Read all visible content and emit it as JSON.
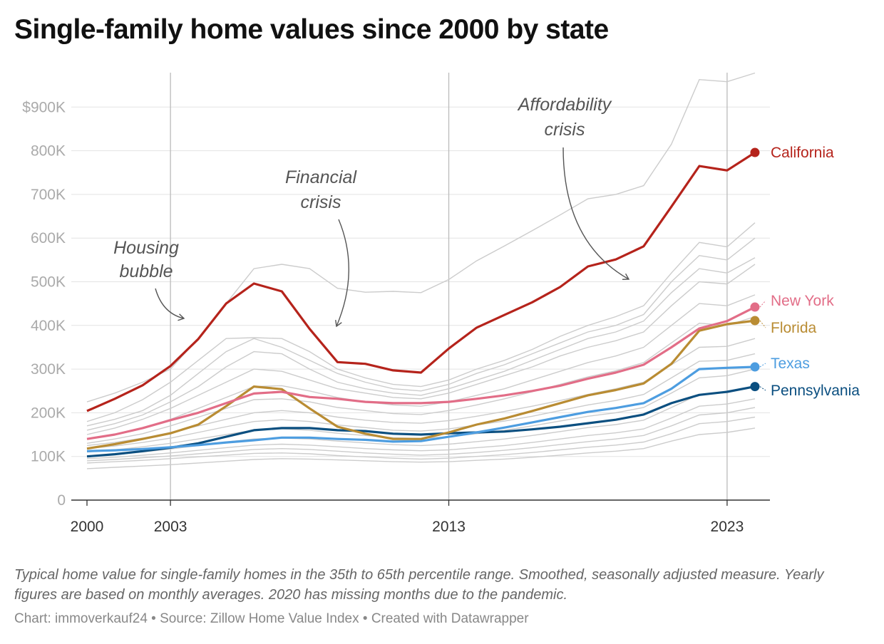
{
  "title": "Single-family home values since 2000 by state",
  "note": "Typical home value for single-family homes in the 35th to 65th percentile range. Smoothed, seasonally adjusted measure. Yearly figures are based on monthly averages. 2020 has missing months due to the pandemic.",
  "credit": "Chart: immoverkauf24 • Source: Zillow Home Value Index • Created with Datawrapper",
  "chart_data": {
    "type": "line",
    "title": "Single-family home values since 2000 by state",
    "x": [
      2000,
      2001,
      2002,
      2003,
      2004,
      2005,
      2006,
      2007,
      2008,
      2009,
      2010,
      2011,
      2012,
      2013,
      2014,
      2015,
      2016,
      2017,
      2018,
      2019,
      2020,
      2021,
      2022,
      2023,
      2024
    ],
    "xticks": [
      {
        "value": 2000,
        "label": "2000"
      },
      {
        "value": 2003,
        "label": "2003"
      },
      {
        "value": 2013,
        "label": "2013"
      },
      {
        "value": 2023,
        "label": "2023"
      }
    ],
    "ylim": [
      0,
      1000000
    ],
    "yticks": [
      {
        "value": 0,
        "label": "0"
      },
      {
        "value": 100000,
        "label": "100K"
      },
      {
        "value": 200000,
        "label": "200K"
      },
      {
        "value": 300000,
        "label": "300K"
      },
      {
        "value": 400000,
        "label": "400K"
      },
      {
        "value": 500000,
        "label": "500K"
      },
      {
        "value": 600000,
        "label": "600K"
      },
      {
        "value": 700000,
        "label": "700K"
      },
      {
        "value": 800000,
        "label": "800K"
      },
      {
        "value": 900000,
        "label": "$900K"
      }
    ],
    "grid": true,
    "highlighted_series": [
      {
        "name": "California",
        "color": "#b5231b",
        "values": [
          204,
          232,
          263,
          307,
          369,
          450,
          496,
          478,
          392,
          316,
          312,
          297,
          292,
          347,
          395,
          424,
          453,
          488,
          535,
          551,
          581,
          672,
          765,
          755,
          796
        ]
      },
      {
        "name": "New York",
        "color": "#e26d87",
        "values": [
          140,
          150,
          165,
          183,
          200,
          222,
          244,
          248,
          236,
          232,
          225,
          222,
          222,
          225,
          232,
          240,
          250,
          262,
          278,
          292,
          310,
          350,
          393,
          410,
          442
        ]
      },
      {
        "name": "Florida",
        "color": "#b98c33",
        "values": [
          118,
          128,
          140,
          153,
          173,
          215,
          260,
          254,
          210,
          168,
          152,
          140,
          140,
          155,
          173,
          187,
          204,
          222,
          240,
          252,
          267,
          312,
          388,
          403,
          411
        ]
      },
      {
        "name": "Texas",
        "color": "#4d9de0",
        "values": [
          112,
          114,
          117,
          121,
          126,
          132,
          137,
          143,
          143,
          140,
          138,
          134,
          135,
          145,
          155,
          166,
          178,
          190,
          202,
          211,
          222,
          255,
          300,
          303,
          305
        ]
      },
      {
        "name": "Pennsylvania",
        "color": "#0b4f80",
        "values": [
          100,
          105,
          112,
          120,
          130,
          145,
          160,
          165,
          165,
          160,
          158,
          152,
          150,
          153,
          155,
          157,
          162,
          168,
          176,
          184,
          196,
          222,
          241,
          248,
          260
        ]
      }
    ],
    "background_series_color": "#cccccc",
    "background_series": [
      [
        225,
        245,
        270,
        300,
        370,
        450,
        530,
        540,
        530,
        485,
        476,
        478,
        475,
        505,
        548,
        582,
        617,
        653,
        690,
        700,
        720,
        815,
        963,
        958,
        978
      ],
      [
        180,
        200,
        230,
        270,
        320,
        370,
        372,
        370,
        340,
        300,
        280,
        265,
        260,
        275,
        300,
        320,
        345,
        375,
        400,
        420,
        445,
        520,
        590,
        580,
        635
      ],
      [
        170,
        185,
        205,
        240,
        290,
        340,
        370,
        350,
        320,
        290,
        270,
        255,
        250,
        265,
        290,
        310,
        335,
        360,
        385,
        400,
        425,
        500,
        560,
        550,
        600
      ],
      [
        160,
        175,
        195,
        225,
        260,
        305,
        340,
        335,
        300,
        270,
        255,
        245,
        240,
        255,
        275,
        295,
        320,
        345,
        370,
        385,
        410,
        475,
        530,
        520,
        555
      ],
      [
        150,
        165,
        185,
        210,
        240,
        270,
        300,
        295,
        275,
        255,
        245,
        235,
        232,
        245,
        265,
        285,
        305,
        330,
        350,
        365,
        385,
        445,
        500,
        495,
        540
      ],
      [
        140,
        150,
        165,
        185,
        210,
        235,
        260,
        262,
        250,
        235,
        225,
        218,
        215,
        225,
        240,
        255,
        275,
        295,
        315,
        330,
        350,
        400,
        450,
        445,
        470
      ],
      [
        130,
        140,
        152,
        170,
        190,
        210,
        230,
        232,
        225,
        212,
        205,
        198,
        196,
        205,
        218,
        232,
        248,
        265,
        282,
        296,
        315,
        360,
        405,
        400,
        420
      ],
      [
        125,
        132,
        142,
        155,
        170,
        185,
        200,
        205,
        200,
        190,
        183,
        178,
        176,
        182,
        192,
        203,
        215,
        228,
        242,
        255,
        270,
        310,
        350,
        352,
        370
      ],
      [
        118,
        124,
        132,
        142,
        155,
        168,
        180,
        184,
        180,
        172,
        166,
        160,
        158,
        163,
        172,
        181,
        192,
        205,
        218,
        228,
        242,
        280,
        318,
        320,
        335
      ],
      [
        110,
        115,
        122,
        130,
        140,
        150,
        160,
        163,
        160,
        153,
        148,
        143,
        141,
        145,
        152,
        160,
        170,
        181,
        192,
        200,
        212,
        245,
        280,
        285,
        300
      ],
      [
        100,
        104,
        110,
        117,
        125,
        133,
        140,
        142,
        140,
        135,
        131,
        127,
        125,
        128,
        134,
        140,
        148,
        157,
        166,
        173,
        183,
        212,
        242,
        246,
        260
      ],
      [
        95,
        98,
        103,
        108,
        114,
        120,
        126,
        128,
        126,
        122,
        118,
        115,
        113,
        115,
        120,
        125,
        132,
        140,
        148,
        154,
        163,
        188,
        215,
        220,
        232
      ],
      [
        90,
        93,
        97,
        101,
        106,
        111,
        116,
        118,
        116,
        112,
        108,
        105,
        103,
        105,
        109,
        114,
        120,
        127,
        134,
        140,
        148,
        170,
        195,
        200,
        212
      ],
      [
        85,
        88,
        91,
        95,
        99,
        103,
        107,
        108,
        106,
        102,
        99,
        96,
        94,
        96,
        100,
        104,
        109,
        115,
        121,
        126,
        133,
        152,
        175,
        180,
        190
      ],
      [
        72,
        75,
        78,
        81,
        85,
        89,
        93,
        95,
        94,
        92,
        90,
        88,
        87,
        88,
        91,
        94,
        98,
        103,
        108,
        112,
        118,
        135,
        150,
        155,
        165
      ]
    ],
    "value_units": "thousands USD",
    "annotations": [
      {
        "lines": [
          "Housing",
          "bubble"
        ]
      },
      {
        "lines": [
          "Financial",
          "crisis"
        ]
      },
      {
        "lines": [
          "Affordability",
          "crisis"
        ]
      }
    ]
  }
}
